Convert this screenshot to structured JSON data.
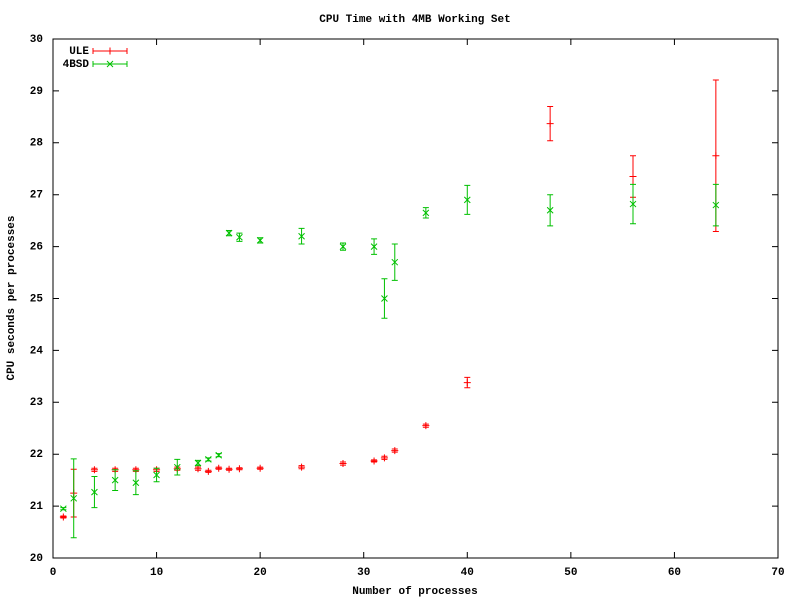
{
  "chart_data": {
    "type": "errorbar",
    "title": "CPU Time with 4MB Working Set",
    "x_label": "Number of processes",
    "y_label": "CPU seconds per processes",
    "xlim": [
      0,
      70
    ],
    "xticks": [
      0,
      10,
      20,
      30,
      40,
      50,
      60,
      70
    ],
    "ylim": [
      20,
      30
    ],
    "yticks": [
      20,
      21,
      22,
      23,
      24,
      25,
      26,
      27,
      28,
      29,
      30
    ],
    "legend": "top-left",
    "series": [
      {
        "name": "ULE",
        "color": "#ff0000",
        "marker": "+",
        "x": [
          1,
          2,
          4,
          6,
          8,
          10,
          12,
          14,
          15,
          16,
          17,
          18,
          20,
          24,
          28,
          31,
          32,
          33,
          36,
          40,
          48,
          56,
          64
        ],
        "values": [
          20.79,
          21.25,
          21.7,
          21.7,
          21.7,
          21.7,
          21.72,
          21.72,
          21.67,
          21.73,
          21.71,
          21.72,
          21.73,
          21.75,
          21.82,
          21.87,
          21.93,
          22.07,
          22.55,
          23.38,
          28.37,
          27.35,
          27.75
        ],
        "errors": [
          0.02,
          0.46,
          0.03,
          0.03,
          0.03,
          0.03,
          0.03,
          0.03,
          0.02,
          0.02,
          0.02,
          0.02,
          0.02,
          0.03,
          0.03,
          0.02,
          0.03,
          0.03,
          0.03,
          0.1,
          0.33,
          0.4,
          1.46
        ]
      },
      {
        "name": "4BSD",
        "color": "#00c000",
        "marker": "x",
        "x": [
          1,
          2,
          4,
          6,
          8,
          10,
          12,
          14,
          15,
          16,
          17,
          18,
          20,
          24,
          28,
          31,
          32,
          33,
          36,
          40,
          48,
          56,
          64
        ],
        "values": [
          20.95,
          21.15,
          21.27,
          21.5,
          21.45,
          21.6,
          21.75,
          21.83,
          21.9,
          21.98,
          26.26,
          26.18,
          26.12,
          26.2,
          26.0,
          26.0,
          25.0,
          25.7,
          26.65,
          26.9,
          26.7,
          26.82,
          26.8
        ],
        "errors": [
          0.02,
          0.76,
          0.3,
          0.2,
          0.23,
          0.13,
          0.15,
          0.05,
          0.03,
          0.03,
          0.05,
          0.08,
          0.05,
          0.15,
          0.07,
          0.15,
          0.38,
          0.35,
          0.1,
          0.28,
          0.3,
          0.38,
          0.4
        ]
      }
    ]
  }
}
